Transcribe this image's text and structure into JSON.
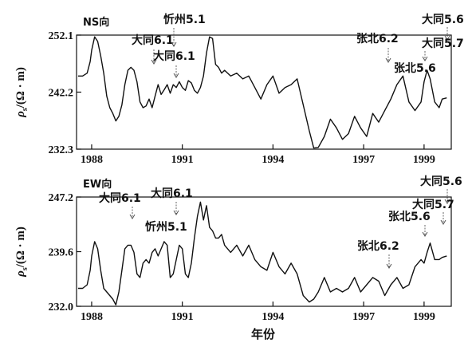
{
  "chart_data": [
    {
      "type": "line",
      "panel": "top",
      "panel_label": "NS向",
      "ylabel_main": "ρ",
      "ylabel_sub": "s",
      "ylabel_unit": "/(Ω · m)",
      "ylim": [
        232.3,
        252.1
      ],
      "yticks": [
        "252.1",
        "242.2",
        "232.3"
      ],
      "xlim": [
        1987.5,
        1999.9
      ],
      "xticks": [
        "1988",
        "1991",
        "1994",
        "1997",
        "1999"
      ],
      "x": [
        1987.55,
        1987.7,
        1987.85,
        1987.95,
        1988.0,
        1988.1,
        1988.2,
        1988.3,
        1988.4,
        1988.5,
        1988.6,
        1988.7,
        1988.8,
        1988.9,
        1989.0,
        1989.1,
        1989.2,
        1989.3,
        1989.4,
        1989.5,
        1989.6,
        1989.7,
        1989.8,
        1989.9,
        1990.0,
        1990.1,
        1990.2,
        1990.3,
        1990.4,
        1990.5,
        1990.6,
        1990.7,
        1990.8,
        1990.9,
        1991.0,
        1991.1,
        1991.2,
        1991.3,
        1991.4,
        1991.5,
        1991.6,
        1991.7,
        1991.8,
        1991.9,
        1992.0,
        1992.1,
        1992.2,
        1992.3,
        1992.4,
        1992.6,
        1992.8,
        1993.0,
        1993.2,
        1993.4,
        1993.6,
        1993.8,
        1994.0,
        1994.2,
        1994.4,
        1994.6,
        1994.8,
        1995.0,
        1995.2,
        1995.35,
        1995.5,
        1995.7,
        1995.9,
        1996.1,
        1996.3,
        1996.5,
        1996.7,
        1996.9,
        1997.1,
        1997.3,
        1997.5,
        1997.7,
        1997.9,
        1998.1,
        1998.3,
        1998.5,
        1998.7,
        1998.9,
        1999.0,
        1999.1,
        1999.2,
        1999.35,
        1999.5,
        1999.6,
        1999.75
      ],
      "values": [
        245.0,
        245.0,
        245.5,
        247.5,
        249.5,
        251.8,
        251.0,
        248.5,
        245.5,
        241.5,
        239.5,
        238.5,
        237.2,
        238.0,
        240.0,
        243.5,
        246.0,
        246.5,
        246.0,
        244.0,
        240.5,
        239.5,
        239.8,
        241.0,
        239.5,
        241.5,
        243.5,
        241.8,
        242.6,
        243.5,
        242.0,
        243.5,
        243.0,
        244.0,
        243.0,
        242.5,
        244.2,
        243.8,
        242.5,
        242.0,
        243.0,
        245.0,
        249.0,
        251.8,
        251.5,
        247.0,
        246.5,
        245.5,
        246.0,
        245.0,
        245.5,
        244.5,
        245.0,
        243.0,
        241.0,
        243.5,
        245.0,
        242.0,
        243.0,
        243.5,
        244.5,
        240.0,
        235.5,
        232.5,
        232.6,
        234.5,
        237.5,
        236.0,
        234.0,
        235.0,
        238.0,
        236.0,
        234.5,
        238.5,
        237.0,
        239.0,
        241.0,
        243.5,
        245.0,
        240.5,
        239.0,
        240.5,
        244.0,
        246.0,
        244.5,
        240.5,
        239.5,
        241.0,
        241.2
      ]
    },
    {
      "type": "line",
      "panel": "bottom",
      "panel_label": "EW向",
      "ylabel_main": "ρ",
      "ylabel_sub": "s",
      "ylabel_unit": "/(Ω · m)",
      "ylim": [
        232.0,
        247.2
      ],
      "yticks": [
        "247.2",
        "239.6",
        "232.0"
      ],
      "xlim": [
        1987.5,
        1999.9
      ],
      "xticks": [
        "1988",
        "1991",
        "1994",
        "1997",
        "1999"
      ],
      "xlabel": "年份",
      "x": [
        1987.55,
        1987.7,
        1987.85,
        1987.95,
        1988.0,
        1988.1,
        1988.2,
        1988.3,
        1988.4,
        1988.5,
        1988.6,
        1988.7,
        1988.8,
        1988.9,
        1989.0,
        1989.1,
        1989.2,
        1989.3,
        1989.4,
        1989.5,
        1989.6,
        1989.7,
        1989.8,
        1989.9,
        1990.0,
        1990.1,
        1990.2,
        1990.3,
        1990.4,
        1990.5,
        1990.6,
        1990.7,
        1990.8,
        1990.9,
        1991.0,
        1991.1,
        1991.2,
        1991.3,
        1991.4,
        1991.5,
        1991.6,
        1991.7,
        1991.8,
        1991.9,
        1992.0,
        1992.1,
        1992.2,
        1992.3,
        1992.4,
        1992.6,
        1992.8,
        1993.0,
        1993.2,
        1993.4,
        1993.6,
        1993.8,
        1994.0,
        1994.2,
        1994.4,
        1994.6,
        1994.8,
        1995.0,
        1995.2,
        1995.35,
        1995.5,
        1995.7,
        1995.9,
        1996.1,
        1996.3,
        1996.5,
        1996.7,
        1996.9,
        1997.1,
        1997.3,
        1997.5,
        1997.7,
        1997.9,
        1998.1,
        1998.3,
        1998.5,
        1998.7,
        1998.9,
        1999.0,
        1999.1,
        1999.2,
        1999.35,
        1999.5,
        1999.6,
        1999.75
      ],
      "values": [
        234.5,
        234.5,
        235.0,
        237.0,
        239.0,
        241.0,
        240.0,
        237.0,
        234.5,
        234.0,
        233.5,
        233.0,
        232.2,
        234.0,
        237.0,
        240.0,
        240.5,
        240.5,
        239.5,
        236.5,
        236.0,
        238.0,
        238.5,
        238.0,
        239.5,
        240.0,
        239.0,
        240.0,
        241.0,
        240.5,
        236.0,
        236.5,
        238.5,
        240.5,
        240.0,
        236.5,
        236.0,
        238.0,
        241.5,
        244.5,
        246.5,
        244.0,
        246.0,
        243.0,
        242.5,
        241.5,
        241.5,
        242.0,
        240.5,
        239.5,
        240.5,
        239.0,
        240.5,
        238.5,
        237.5,
        237.0,
        239.5,
        237.5,
        236.5,
        238.0,
        236.5,
        233.5,
        232.6,
        233.0,
        234.0,
        236.0,
        234.0,
        234.5,
        234.0,
        234.5,
        236.0,
        234.0,
        235.0,
        236.0,
        235.5,
        233.5,
        235.0,
        236.0,
        234.5,
        235.0,
        237.5,
        238.5,
        238.0,
        239.5,
        240.8,
        238.5,
        238.5,
        238.8,
        239.0
      ]
    }
  ],
  "annotations_top": [
    {
      "label": "大同6.1",
      "x": 1989.5
    },
    {
      "label": "忻州5.1",
      "x": 1990.7
    },
    {
      "label": "大同6.1",
      "x": 1990.9
    },
    {
      "label": "张北6.2",
      "x": 1997.2
    },
    {
      "label": "张北5.6",
      "x": 1998.5
    },
    {
      "label": "大同5.6",
      "x": 1999.65
    },
    {
      "label": "大同5.7",
      "x": 1999.65
    }
  ],
  "annotations_bottom": [
    {
      "label": "大同6.1",
      "x": 1989.5
    },
    {
      "label": "大同6.1",
      "x": 1990.9
    },
    {
      "label": "忻州5.1",
      "x": 1990.7
    },
    {
      "label": "张北6.2",
      "x": 1997.2
    },
    {
      "label": "张北5.6",
      "x": 1998.5
    },
    {
      "label": "大同5.6",
      "x": 1999.65
    },
    {
      "label": "大同5.7",
      "x": 1999.65
    }
  ]
}
